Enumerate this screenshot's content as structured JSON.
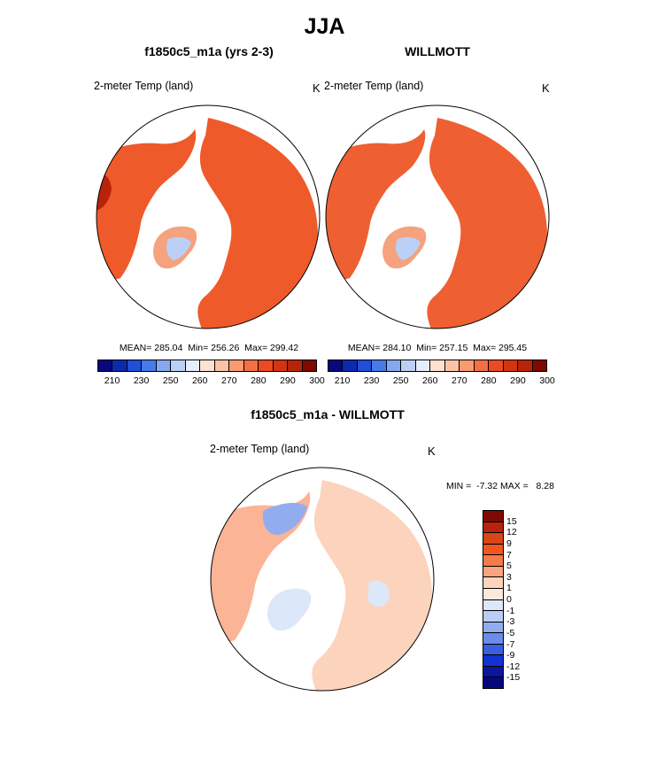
{
  "page": {
    "title": "JJA"
  },
  "units": "K",
  "panels": [
    {
      "title": "f1850c5_m1a (yrs 2-3)",
      "label": "2-meter Temp (land)",
      "units": "K",
      "stats": "MEAN= 285.04  Min= 256.26  Max= 299.42"
    },
    {
      "title": "WILLMOTT",
      "label": "2-meter Temp (land)",
      "units": "K",
      "stats": "MEAN= 284.10  Min= 257.15  Max= 295.45"
    },
    {
      "title": "f1850c5_m1a - WILLMOTT",
      "label": "2-meter Temp (land)",
      "units": "K",
      "stats": "MIN =  -7.32 MAX =   8.28"
    }
  ],
  "colorbar_abs": {
    "colors": [
      "#08087f",
      "#0c2ab0",
      "#1e4fd6",
      "#4a7ae8",
      "#86a8f0",
      "#bcd0f5",
      "#e6eefb",
      "#fde2d2",
      "#fbc3a5",
      "#f99a73",
      "#f56f46",
      "#ec4a22",
      "#d43412",
      "#b8240a",
      "#7f0a02"
    ],
    "tick_labels": [
      "210",
      "230",
      "250",
      "260",
      "270",
      "280",
      "290",
      "300"
    ]
  },
  "colorbar_diff": {
    "colors": [
      "#7f0a02",
      "#b8240a",
      "#d84516",
      "#f2551e",
      "#f57a4c",
      "#fba47e",
      "#fcd3bd",
      "#fde9dc",
      "#dde7fa",
      "#b9cdf5",
      "#91adf0",
      "#6a8ceb",
      "#3a5ee2",
      "#1232d0",
      "#0a169e",
      "#06087a"
    ],
    "tick_labels": [
      "15",
      "12",
      "9",
      "7",
      "5",
      "3",
      "1",
      "0",
      "-1",
      "-3",
      "-5",
      "-7",
      "-9",
      "-12",
      "-15"
    ]
  },
  "chart_data": [
    {
      "type": "heatmap",
      "title": "f1850c5_m1a (yrs 2-3)",
      "variable": "2-meter Temp (land)",
      "units": "K",
      "mean": 285.04,
      "min": 256.26,
      "max": 299.42
    },
    {
      "type": "heatmap",
      "title": "WILLMOTT",
      "variable": "2-meter Temp (land)",
      "units": "K",
      "mean": 284.1,
      "min": 257.15,
      "max": 295.45
    },
    {
      "type": "heatmap",
      "title": "f1850c5_m1a - WILLMOTT",
      "variable": "2-meter Temp (land)",
      "units": "K",
      "min": -7.32,
      "max": 8.28
    }
  ]
}
